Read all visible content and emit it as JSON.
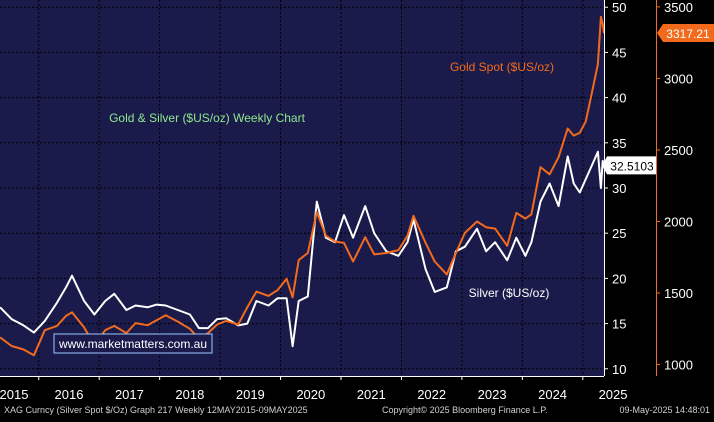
{
  "chart_data": {
    "type": "line",
    "title": "Gold & Silver ($US/oz) Weekly Chart",
    "x_range": [
      "2015-05-12",
      "2025-05-09"
    ],
    "x_ticks": [
      "2015",
      "2016",
      "2017",
      "2018",
      "2019",
      "2020",
      "2021",
      "2022",
      "2023",
      "2024",
      "2025"
    ],
    "right_axis": {
      "series": "Silver",
      "ticks": [
        10,
        15,
        20,
        25,
        30,
        35,
        40,
        45,
        50
      ],
      "ylim": [
        9.2,
        50.8
      ]
    },
    "outer_axis": {
      "series": "Gold",
      "ticks": [
        1000,
        1500,
        2000,
        2500,
        3000,
        3500
      ],
      "ylim": [
        920,
        3548
      ]
    },
    "grid": true,
    "series": [
      {
        "name": "Gold Spot ($US/oz)",
        "axis": "outer",
        "color": "#f26b1d",
        "last_value_label": "3317.21",
        "points": [
          [
            "2015.36",
            1190
          ],
          [
            "2015.55",
            1130
          ],
          [
            "2015.75",
            1105
          ],
          [
            "2015.92",
            1065
          ],
          [
            "2016.10",
            1240
          ],
          [
            "2016.30",
            1270
          ],
          [
            "2016.45",
            1340
          ],
          [
            "2016.55",
            1365
          ],
          [
            "2016.75",
            1260
          ],
          [
            "2016.92",
            1135
          ],
          [
            "2017.10",
            1240
          ],
          [
            "2017.25",
            1270
          ],
          [
            "2017.45",
            1220
          ],
          [
            "2017.60",
            1290
          ],
          [
            "2017.80",
            1275
          ],
          [
            "2017.95",
            1310
          ],
          [
            "2018.10",
            1345
          ],
          [
            "2018.30",
            1300
          ],
          [
            "2018.50",
            1250
          ],
          [
            "2018.65",
            1180
          ],
          [
            "2018.80",
            1220
          ],
          [
            "2018.95",
            1280
          ],
          [
            "2019.10",
            1305
          ],
          [
            "2019.30",
            1280
          ],
          [
            "2019.45",
            1400
          ],
          [
            "2019.60",
            1510
          ],
          [
            "2019.80",
            1480
          ],
          [
            "2019.95",
            1520
          ],
          [
            "2020.10",
            1600
          ],
          [
            "2020.20",
            1470
          ],
          [
            "2020.30",
            1730
          ],
          [
            "2020.45",
            1780
          ],
          [
            "2020.60",
            2065
          ],
          [
            "2020.75",
            1900
          ],
          [
            "2020.90",
            1860
          ],
          [
            "2021.05",
            1850
          ],
          [
            "2021.20",
            1720
          ],
          [
            "2021.40",
            1890
          ],
          [
            "2021.55",
            1770
          ],
          [
            "2021.75",
            1780
          ],
          [
            "2021.95",
            1800
          ],
          [
            "2022.10",
            1900
          ],
          [
            "2022.20",
            2040
          ],
          [
            "2022.40",
            1850
          ],
          [
            "2022.55",
            1720
          ],
          [
            "2022.75",
            1630
          ],
          [
            "2022.90",
            1780
          ],
          [
            "2023.05",
            1920
          ],
          [
            "2023.25",
            2000
          ],
          [
            "2023.40",
            1960
          ],
          [
            "2023.55",
            1950
          ],
          [
            "2023.75",
            1830
          ],
          [
            "2023.90",
            2060
          ],
          [
            "2024.05",
            2020
          ],
          [
            "2024.15",
            2050
          ],
          [
            "2024.30",
            2380
          ],
          [
            "2024.45",
            2330
          ],
          [
            "2024.60",
            2450
          ],
          [
            "2024.75",
            2650
          ],
          [
            "2024.85",
            2600
          ],
          [
            "2024.95",
            2620
          ],
          [
            "2025.05",
            2700
          ],
          [
            "2025.15",
            2900
          ],
          [
            "2025.25",
            3100
          ],
          [
            "2025.30",
            3430
          ],
          [
            "2025.33",
            3380
          ],
          [
            "2025.35",
            3317
          ]
        ]
      },
      {
        "name": "Silver ($US/oz)",
        "axis": "right",
        "color": "#ffffff",
        "last_value_label": "32.5103",
        "points": [
          [
            "2015.36",
            16.8
          ],
          [
            "2015.55",
            15.5
          ],
          [
            "2015.75",
            14.8
          ],
          [
            "2015.92",
            14.0
          ],
          [
            "2016.10",
            15.3
          ],
          [
            "2016.30",
            17.3
          ],
          [
            "2016.45",
            19.0
          ],
          [
            "2016.55",
            20.3
          ],
          [
            "2016.75",
            17.5
          ],
          [
            "2016.92",
            16.0
          ],
          [
            "2017.10",
            17.5
          ],
          [
            "2017.25",
            18.3
          ],
          [
            "2017.45",
            16.5
          ],
          [
            "2017.60",
            17.0
          ],
          [
            "2017.80",
            16.8
          ],
          [
            "2017.95",
            17.1
          ],
          [
            "2018.10",
            17.0
          ],
          [
            "2018.30",
            16.5
          ],
          [
            "2018.50",
            16.0
          ],
          [
            "2018.65",
            14.5
          ],
          [
            "2018.80",
            14.5
          ],
          [
            "2018.95",
            15.5
          ],
          [
            "2019.10",
            15.6
          ],
          [
            "2019.30",
            14.8
          ],
          [
            "2019.45",
            15.0
          ],
          [
            "2019.60",
            17.5
          ],
          [
            "2019.80",
            17.0
          ],
          [
            "2019.95",
            17.8
          ],
          [
            "2020.10",
            17.8
          ],
          [
            "2020.20",
            12.5
          ],
          [
            "2020.30",
            17.5
          ],
          [
            "2020.45",
            18.0
          ],
          [
            "2020.60",
            28.5
          ],
          [
            "2020.75",
            24.5
          ],
          [
            "2020.90",
            24.0
          ],
          [
            "2021.05",
            27.0
          ],
          [
            "2021.20",
            24.5
          ],
          [
            "2021.40",
            28.0
          ],
          [
            "2021.55",
            25.0
          ],
          [
            "2021.75",
            23.0
          ],
          [
            "2021.95",
            22.5
          ],
          [
            "2022.10",
            24.0
          ],
          [
            "2022.20",
            26.5
          ],
          [
            "2022.40",
            21.0
          ],
          [
            "2022.55",
            18.5
          ],
          [
            "2022.75",
            19.0
          ],
          [
            "2022.90",
            23.0
          ],
          [
            "2023.05",
            23.5
          ],
          [
            "2023.25",
            25.5
          ],
          [
            "2023.40",
            23.0
          ],
          [
            "2023.55",
            24.0
          ],
          [
            "2023.75",
            22.0
          ],
          [
            "2023.90",
            24.5
          ],
          [
            "2024.05",
            22.5
          ],
          [
            "2024.15",
            24.0
          ],
          [
            "2024.30",
            28.5
          ],
          [
            "2024.45",
            30.5
          ],
          [
            "2024.60",
            28.0
          ],
          [
            "2024.75",
            33.5
          ],
          [
            "2024.85",
            30.5
          ],
          [
            "2024.95",
            29.5
          ],
          [
            "2025.05",
            31.0
          ],
          [
            "2025.15",
            32.5
          ],
          [
            "2025.25",
            34.0
          ],
          [
            "2025.30",
            30.0
          ],
          [
            "2025.33",
            33.0
          ],
          [
            "2025.35",
            32.5
          ]
        ]
      }
    ],
    "annotations": {
      "chart_title": "Gold & Silver ($US/oz) Weekly Chart",
      "gold_label": "Gold Spot ($US/oz)",
      "silver_label": "Silver ($US/oz)",
      "watermark": "www.marketmatters.com.au",
      "footer_left": "XAG Curncy (Silver Spot  $/Oz) Graph 217  Weekly 12MAY2015-09MAY2025",
      "footer_mid": "Copyright© 2025 Bloomberg Finance L.P.",
      "footer_right": "09-May-2025 14:48:01"
    }
  },
  "colors": {
    "plot_background": "#1a1b4b",
    "grid": "#000000",
    "gold": "#f26b1d",
    "silver": "#ffffff",
    "title_text": "#8fe88f",
    "axis_text": "#ffffff",
    "footer_text": "#d0d0d0"
  }
}
